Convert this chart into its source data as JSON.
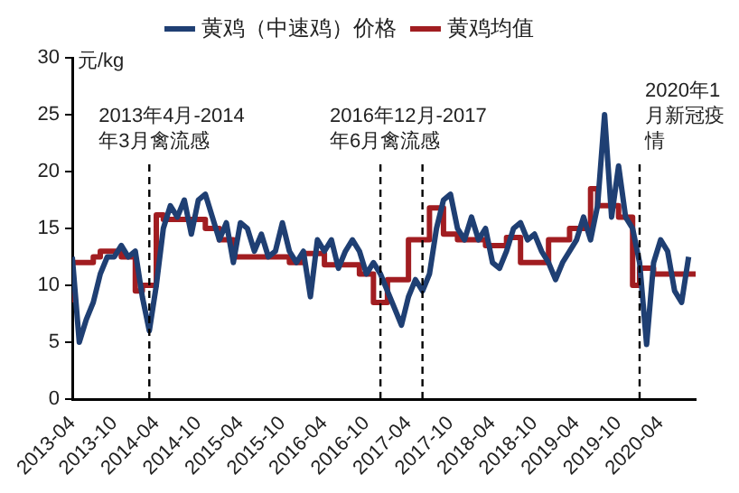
{
  "chart_data": {
    "type": "line",
    "ylabel": "元/kg",
    "legend": "top",
    "grid": false,
    "xlim": [
      "2013-04",
      "2020-09"
    ],
    "xticks": [
      "2013-04",
      "2013-10",
      "2014-04",
      "2014-10",
      "2015-04",
      "2015-10",
      "2016-04",
      "2016-10",
      "2017-04",
      "2017-10",
      "2018-04",
      "2018-10",
      "2019-04",
      "2019-10",
      "2020-04"
    ],
    "ylim": [
      0,
      30
    ],
    "yticks": [
      0,
      5,
      10,
      15,
      20,
      25,
      30
    ],
    "series": [
      {
        "name": "黄鸡（中速鸡）价格",
        "type": "line",
        "color": "#1f3f73",
        "x": [
          "2013-04",
          "2013-05",
          "2013-06",
          "2013-07",
          "2013-08",
          "2013-09",
          "2013-10",
          "2013-11",
          "2013-12",
          "2014-01",
          "2014-02",
          "2014-03",
          "2014-04",
          "2014-05",
          "2014-06",
          "2014-07",
          "2014-08",
          "2014-09",
          "2014-10",
          "2014-11",
          "2014-12",
          "2015-01",
          "2015-02",
          "2015-03",
          "2015-04",
          "2015-05",
          "2015-06",
          "2015-07",
          "2015-08",
          "2015-09",
          "2015-10",
          "2015-11",
          "2015-12",
          "2016-01",
          "2016-02",
          "2016-03",
          "2016-04",
          "2016-05",
          "2016-06",
          "2016-07",
          "2016-08",
          "2016-09",
          "2016-10",
          "2016-11",
          "2016-12",
          "2017-01",
          "2017-02",
          "2017-03",
          "2017-04",
          "2017-05",
          "2017-06",
          "2017-07",
          "2017-08",
          "2017-09",
          "2017-10",
          "2017-11",
          "2017-12",
          "2018-01",
          "2018-02",
          "2018-03",
          "2018-04",
          "2018-05",
          "2018-06",
          "2018-07",
          "2018-08",
          "2018-09",
          "2018-10",
          "2018-11",
          "2018-12",
          "2019-01",
          "2019-02",
          "2019-03",
          "2019-04",
          "2019-05",
          "2019-06",
          "2019-07",
          "2019-08",
          "2019-09",
          "2019-10",
          "2019-11",
          "2019-12",
          "2020-01",
          "2020-02",
          "2020-03",
          "2020-04",
          "2020-05",
          "2020-06",
          "2020-07",
          "2020-08"
        ],
        "values": [
          12.5,
          5,
          7,
          8.5,
          11,
          12.5,
          12.5,
          13.5,
          12.5,
          13,
          9,
          6,
          10,
          15,
          17,
          16,
          17.5,
          14.5,
          17.5,
          18,
          16,
          14,
          15.5,
          12,
          15.5,
          15,
          13,
          14.5,
          12.5,
          13,
          15.5,
          13,
          12,
          13,
          9,
          14,
          13,
          14,
          11.5,
          13,
          14,
          13,
          11,
          12,
          11,
          9.5,
          8,
          6.5,
          9,
          10.5,
          9.5,
          11,
          15,
          17.5,
          18,
          15,
          14,
          16,
          14,
          15,
          12,
          11.5,
          13,
          15,
          15.5,
          14,
          14.5,
          13,
          12,
          10.5,
          12,
          13,
          14,
          16,
          14,
          17,
          25,
          16,
          20.5,
          16,
          15,
          12,
          4.8,
          12,
          14,
          13,
          9.5,
          8.5,
          12.5
        ]
      },
      {
        "name": "黄鸡均值",
        "type": "step",
        "color": "#a11d21",
        "x": [
          "2013-04",
          "2013-07",
          "2013-08",
          "2013-11",
          "2014-01",
          "2014-02",
          "2014-04",
          "2014-05",
          "2014-11",
          "2015-01",
          "2015-03",
          "2015-11",
          "2016-01",
          "2016-04",
          "2016-09",
          "2016-11",
          "2017-01",
          "2017-04",
          "2017-07",
          "2017-09",
          "2017-11",
          "2018-03",
          "2018-06",
          "2018-08",
          "2018-12",
          "2019-03",
          "2019-06",
          "2019-07",
          "2019-10",
          "2019-12",
          "2020-01",
          "2020-03",
          "2020-08",
          "2020-09"
        ],
        "values": [
          8.5,
          12,
          12.5,
          13,
          12.5,
          9.5,
          10,
          16.2,
          15.8,
          15,
          14,
          12.5,
          12,
          12.8,
          11.8,
          11,
          8.5,
          10.5,
          14,
          16.8,
          14.5,
          14,
          13.5,
          14.2,
          12,
          14,
          15,
          18.5,
          17,
          16,
          10,
          11.5,
          11,
          11
        ]
      }
    ],
    "ref_lines": [
      {
        "axis": "x",
        "value": "2014-03",
        "label": "2013年4月-2014年3月禽流感",
        "line_style": "dashed",
        "color": "#000000"
      },
      {
        "axis": "x",
        "value": "2016-12",
        "label": "2016年12月-2017年6月禽流感",
        "line_style": "dashed",
        "color": "#000000"
      },
      {
        "axis": "x",
        "value": "2017-06",
        "line_style": "dashed",
        "color": "#000000"
      },
      {
        "axis": "x",
        "value": "2020-01",
        "label": "2020年1月新冠疫情",
        "line_style": "dashed",
        "color": "#000000"
      }
    ]
  }
}
